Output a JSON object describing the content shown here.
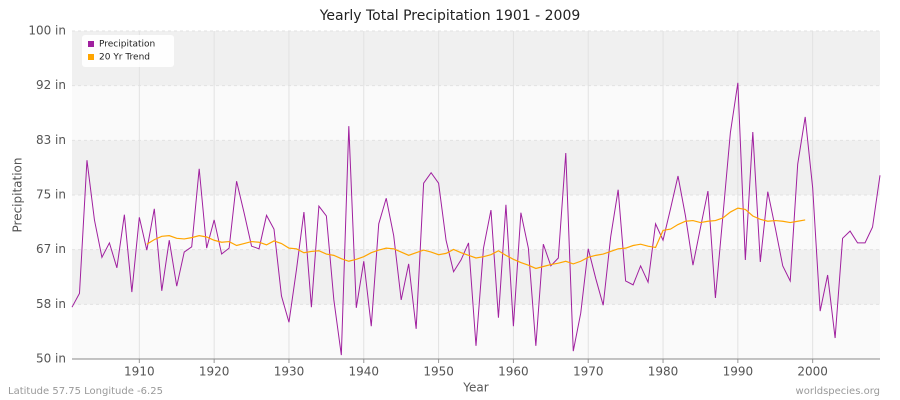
{
  "chart_data": {
    "type": "line",
    "title": "Yearly Total Precipitation 1901 - 2009",
    "xlabel": "Year",
    "ylabel": "Precipitation",
    "location": "Latitude 57.75 Longitude -6.25",
    "source": "worldspecies.org",
    "x": [
      1901,
      1902,
      1903,
      1904,
      1905,
      1906,
      1907,
      1908,
      1909,
      1910,
      1911,
      1912,
      1913,
      1914,
      1915,
      1916,
      1917,
      1918,
      1919,
      1920,
      1921,
      1922,
      1923,
      1924,
      1925,
      1926,
      1927,
      1928,
      1929,
      1930,
      1931,
      1932,
      1933,
      1934,
      1935,
      1936,
      1937,
      1938,
      1939,
      1940,
      1941,
      1942,
      1943,
      1944,
      1945,
      1946,
      1947,
      1948,
      1949,
      1950,
      1951,
      1952,
      1953,
      1954,
      1955,
      1956,
      1957,
      1958,
      1959,
      1960,
      1961,
      1962,
      1963,
      1964,
      1965,
      1966,
      1967,
      1968,
      1969,
      1970,
      1971,
      1972,
      1973,
      1974,
      1975,
      1976,
      1977,
      1978,
      1979,
      1980,
      1981,
      1982,
      1983,
      1984,
      1985,
      1986,
      1987,
      1988,
      1989,
      1990,
      1991,
      1992,
      1993,
      1994,
      1995,
      1996,
      1997,
      1998,
      1999,
      2000,
      2001,
      2002,
      2003,
      2004,
      2005,
      2006,
      2007,
      2008,
      2009
    ],
    "series": [
      {
        "name": "Precipitation",
        "color": "#a0209f",
        "values": [
          57.9,
          60,
          80.3,
          71.2,
          65.5,
          67.7,
          63.9,
          72,
          60.2,
          71.6,
          66.6,
          72.9,
          60.4,
          68.1,
          61.1,
          66.3,
          67.1,
          79,
          66.9,
          71.2,
          66,
          66.9,
          77.1,
          72.3,
          67.2,
          66.8,
          71.9,
          69.8,
          59.6,
          55.6,
          63.6,
          72.4,
          57.9,
          73.3,
          71.8,
          59,
          50.6,
          85.5,
          57.8,
          64.9,
          55,
          70.6,
          74.5,
          68.8,
          59,
          64.5,
          54.6,
          76.8,
          78.4,
          76.8,
          68.1,
          63.3,
          65.1,
          67.7,
          52,
          66.9,
          72.7,
          56.3,
          73.5,
          55,
          72.3,
          66.9,
          52,
          67.5,
          64.2,
          65.4,
          81.4,
          51.2,
          57,
          66.8,
          62.3,
          58.2,
          68.6,
          75.8,
          61.9,
          61.3,
          64.2,
          61.7,
          70.6,
          68.1,
          72.9,
          77.9,
          71.8,
          64.3,
          70,
          75.6,
          59.3,
          71.8,
          84.5,
          92.1,
          65.1,
          84.6,
          64.8,
          75.5,
          70,
          64.2,
          61.9,
          79.7,
          86.9,
          76.1,
          57.3,
          62.8,
          53.2,
          68.4,
          69.5,
          67.7,
          67.7,
          70.1,
          78
        ]
      },
      {
        "name": "20 Yr Trend",
        "color": "#ffa500",
        "values": [
          null,
          null,
          null,
          null,
          null,
          null,
          null,
          null,
          null,
          null,
          67.5,
          68.2,
          68.7,
          68.8,
          68.4,
          68.3,
          68.5,
          68.8,
          68.6,
          68.1,
          67.8,
          67.9,
          67.3,
          67.6,
          67.9,
          67.8,
          67.4,
          68.0,
          67.6,
          66.9,
          66.8,
          66.2,
          66.4,
          66.5,
          66.0,
          65.8,
          65.3,
          64.9,
          65.2,
          65.6,
          66.2,
          66.6,
          66.9,
          66.8,
          66.3,
          65.8,
          66.2,
          66.6,
          66.3,
          65.9,
          66.1,
          66.7,
          66.2,
          65.8,
          65.4,
          65.6,
          65.9,
          66.5,
          65.8,
          65.2,
          64.7,
          64.3,
          63.8,
          64.1,
          64.4,
          64.6,
          64.9,
          64.5,
          64.9,
          65.5,
          65.8,
          66.0,
          66.4,
          66.8,
          66.9,
          67.3,
          67.5,
          67.2,
          67.0,
          69.6,
          69.8,
          70.5,
          71.0,
          71.1,
          70.8,
          71.0,
          71.1,
          71.5,
          72.4,
          73.0,
          72.8,
          71.8,
          71.3,
          71.0,
          71.1,
          71.0,
          70.8,
          71.0,
          71.2,
          null,
          null,
          null,
          null,
          null,
          null,
          null,
          null,
          null,
          null
        ]
      }
    ],
    "xlim": [
      1901,
      2009
    ],
    "xticks": [
      1910,
      1920,
      1930,
      1940,
      1950,
      1960,
      1970,
      1980,
      1990,
      2000
    ],
    "ylim": [
      50,
      100
    ],
    "yticks": [
      {
        "value": 50,
        "label": "50 in"
      },
      {
        "value": 58.33,
        "label": "58 in"
      },
      {
        "value": 66.67,
        "label": "67 in"
      },
      {
        "value": 75,
        "label": "75 in"
      },
      {
        "value": 83.33,
        "label": "83 in"
      },
      {
        "value": 91.67,
        "label": "92 in"
      },
      {
        "value": 100,
        "label": "100 in"
      }
    ],
    "grid": true,
    "legend": "top-left"
  }
}
